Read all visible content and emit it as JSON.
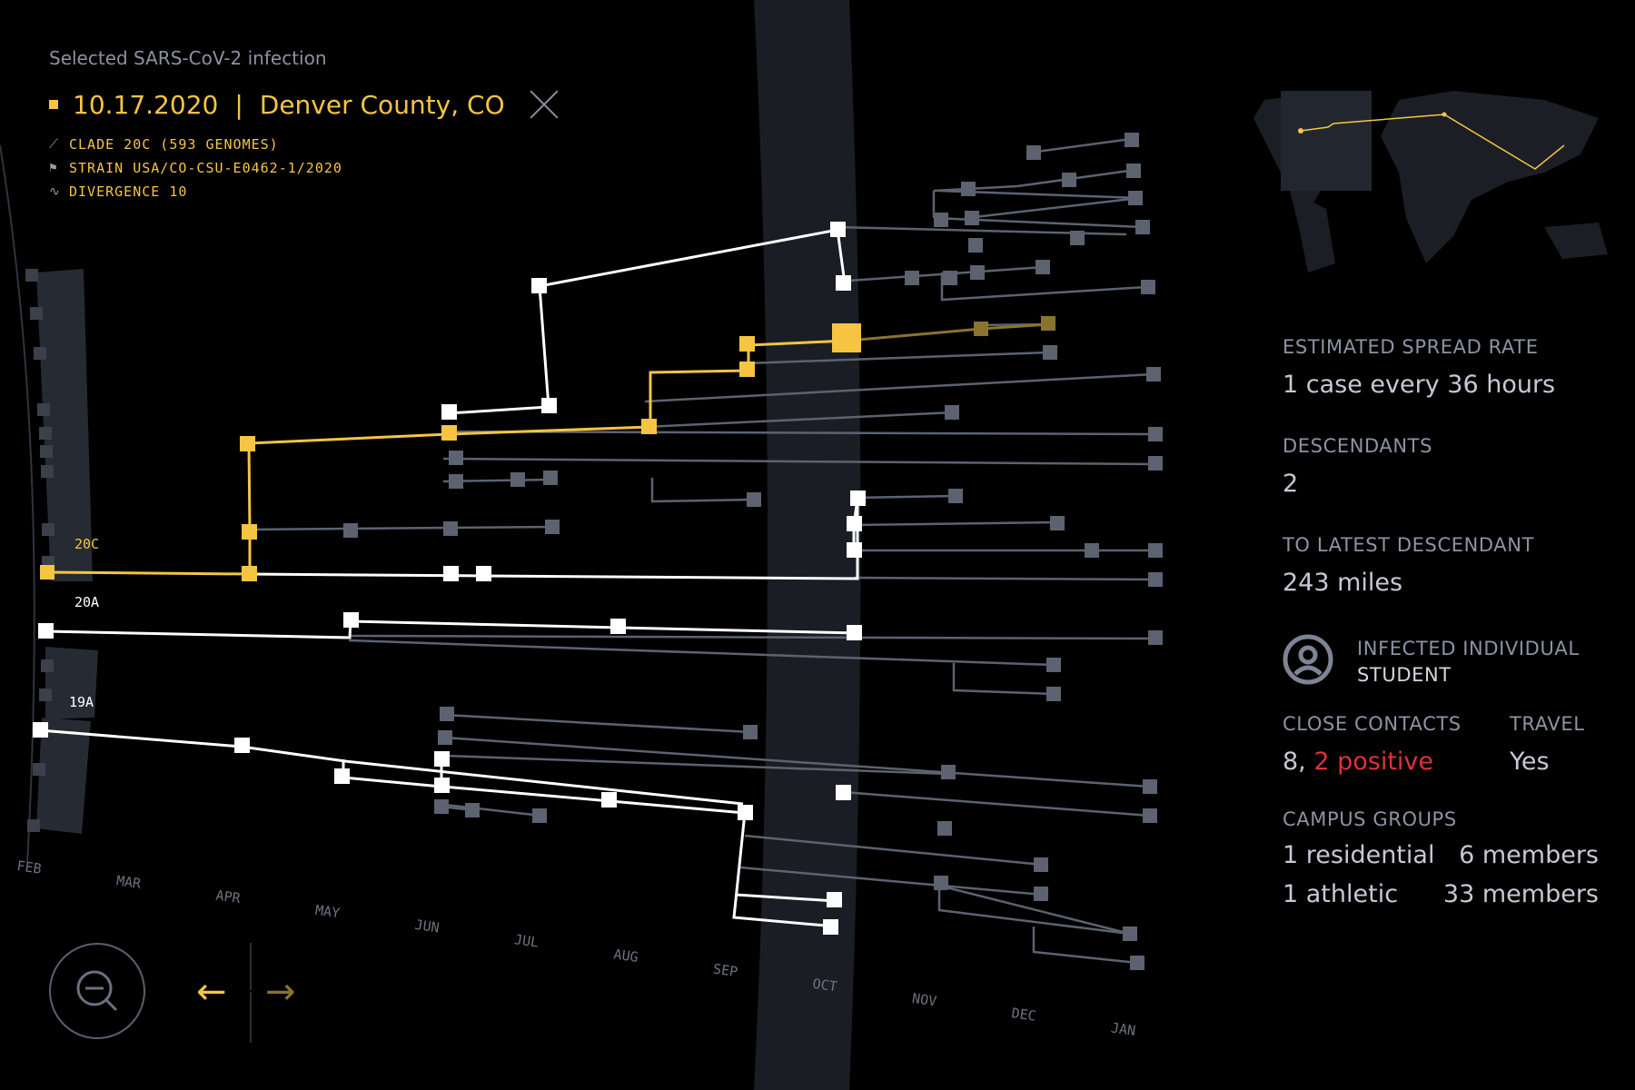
{
  "header": {
    "selected_label": "Selected SARS-CoV-2 infection",
    "date": "10.17.2020",
    "separator": "|",
    "location": "Denver County, CO",
    "clade": "CLADE 20C (593 GENOMES)",
    "strain": "STRAIN USA/CO-CSU-E0462-1/2020",
    "divergence": "DIVERGENCE 10"
  },
  "timeline": {
    "months": [
      "FEB",
      "MAR",
      "APR",
      "MAY",
      "JUN",
      "JUL",
      "AUG",
      "SEP",
      "OCT",
      "NOV",
      "DEC",
      "JAN"
    ],
    "clades": [
      "20C",
      "20A",
      "19A"
    ]
  },
  "stats": {
    "spread_label": "ESTIMATED SPREAD RATE",
    "spread_value": "1 case every 36 hours",
    "descendants_label": "DESCENDANTS",
    "descendants_value": "2",
    "latest_label": "TO LATEST DESCENDANT",
    "latest_value": "243 miles",
    "individual_label": "INFECTED INDIVIDUAL",
    "individual_value": "STUDENT",
    "contacts_label": "CLOSE CONTACTS",
    "contacts_count": "8,",
    "contacts_positive": "2 positive",
    "travel_label": "TRAVEL",
    "travel_value": "Yes",
    "campus_label": "CAMPUS GROUPS",
    "groups": [
      {
        "name": "1 residential",
        "members": "6 members"
      },
      {
        "name": "1 athletic",
        "members": "33 members"
      }
    ]
  },
  "icons": {
    "clade": "dna-icon",
    "strain": "flag-icon",
    "divergence": "pulse-icon",
    "individual": "person-icon",
    "zoom": "zoom-out-icon",
    "prev": "arrow-left-icon",
    "next": "arrow-right-icon",
    "close": "close-icon"
  },
  "colors": {
    "accent": "#f5c542",
    "accent_dim": "#8a7330",
    "highlight_branch": "#ffffff",
    "branch": "#5c6270",
    "positive": "#e0303b",
    "band": "#1a1d24"
  }
}
